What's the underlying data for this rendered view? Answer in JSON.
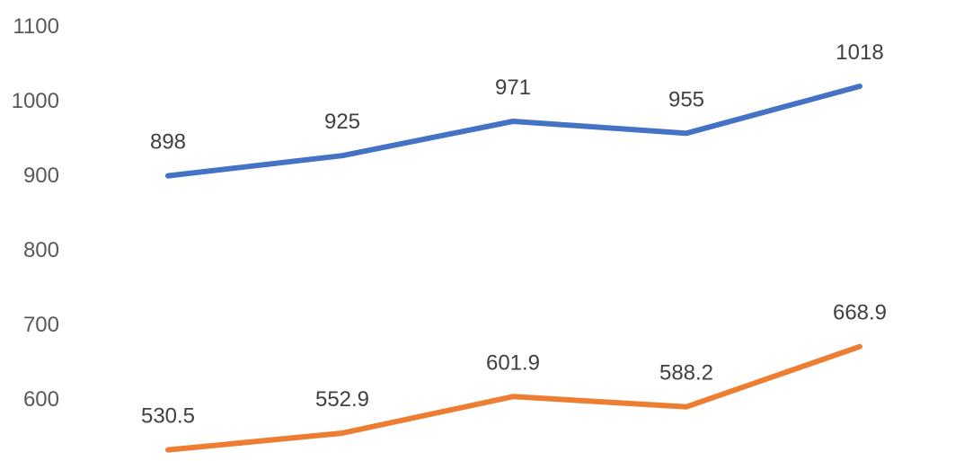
{
  "chart_data": {
    "type": "line",
    "title": "",
    "xlabel": "",
    "ylabel": "",
    "categories": [
      "",
      "",
      "",
      "",
      ""
    ],
    "ylim": [
      530,
      1100
    ],
    "yticks": [
      600,
      700,
      800,
      900,
      1000,
      1100
    ],
    "grid": false,
    "legend": "none",
    "series": [
      {
        "color": "#4472C4",
        "values": [
          898,
          925,
          971,
          955,
          1018
        ],
        "labels": [
          "898",
          "925",
          "971",
          "955",
          "1018"
        ]
      },
      {
        "color": "#ED7D31",
        "values": [
          530.5,
          552.9,
          601.9,
          588.2,
          668.9
        ],
        "labels": [
          "530.5",
          "552.9",
          "601.9",
          "588.2",
          "668.9"
        ]
      }
    ]
  }
}
